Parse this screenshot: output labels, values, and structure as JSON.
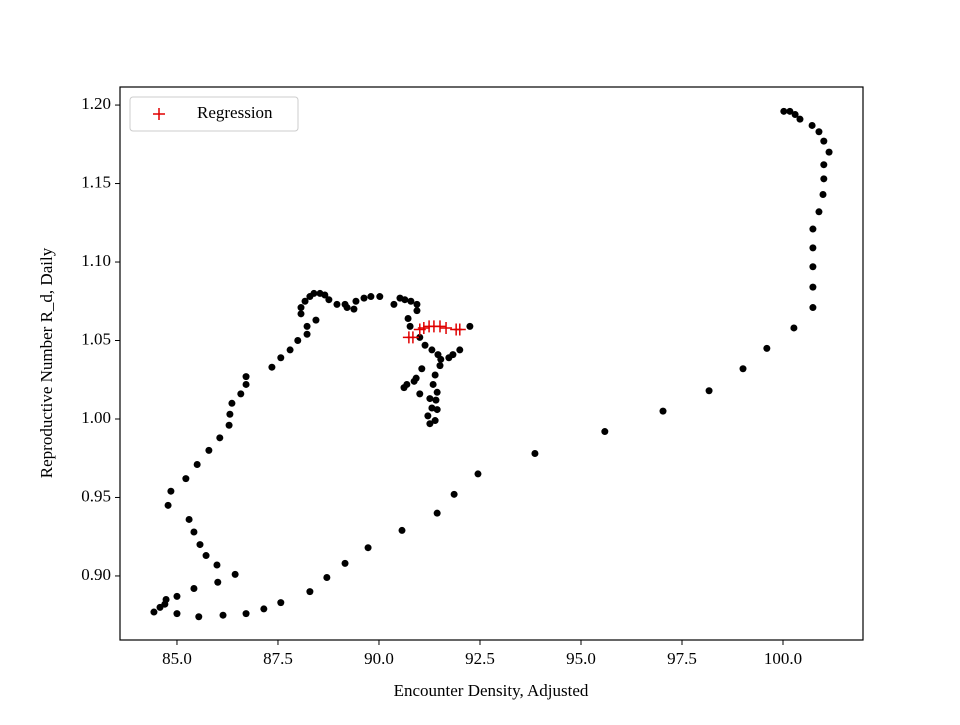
{
  "chart_data": {
    "type": "scatter",
    "xlabel": "Encounter Density, Adjusted",
    "ylabel": "Reproductive Number R_d, Daily",
    "xlim": [
      83.59,
      101.98
    ],
    "ylim": [
      0.8592,
      1.2115
    ],
    "xticks": [
      {
        "value": 85,
        "label": "85.0"
      },
      87.5,
      {
        "value": 90,
        "label": "90.0"
      },
      92.5,
      {
        "value": 95,
        "label": "95.0"
      },
      97.5,
      {
        "value": 100,
        "label": "100.0"
      }
    ],
    "yticks": [
      {
        "value": 0.9,
        "label": "0.90"
      },
      0.95,
      {
        "value": 1,
        "label": "1.00"
      },
      1.05,
      {
        "value": 1.1,
        "label": "1.10"
      },
      1.15,
      {
        "value": 1.2,
        "label": "1.20"
      }
    ],
    "legend": "upper left",
    "series": [
      {
        "color": "#000000",
        "marker": "dot",
        "x": [
          84.43,
          84.58,
          84.7,
          84.73,
          85.0,
          85.0,
          85.54,
          85.42,
          86.14,
          86.01,
          86.71,
          87.15,
          87.57,
          88.29,
          88.71,
          89.16,
          89.73,
          90.57,
          91.44,
          91.86,
          92.45,
          93.86,
          95.59,
          97.03,
          98.17,
          99.01,
          99.6,
          100.27,
          100.74,
          100.74,
          100.74,
          100.74,
          100.74,
          100.89,
          100.99,
          101.01,
          101.01,
          101.14,
          101.01,
          100.89,
          100.72,
          100.42,
          100.3,
          100.17,
          100.02,
          84.78,
          84.85,
          85.22,
          85.5,
          85.79,
          86.06,
          86.29,
          86.31,
          86.36,
          86.58,
          86.71,
          86.71,
          87.35,
          87.57,
          87.8,
          87.99,
          88.22,
          88.22,
          88.44,
          88.07,
          88.07,
          88.17,
          88.29,
          88.39,
          88.54,
          88.66,
          88.76,
          88.96,
          89.16,
          89.21,
          89.38,
          89.43,
          89.63,
          89.8,
          90.02,
          90.37,
          90.52,
          90.64,
          90.79,
          90.94,
          90.94,
          90.72,
          90.77,
          91.01,
          91.14,
          91.31,
          91.46,
          91.53,
          91.51,
          91.39,
          91.34,
          91.44,
          91.41,
          91.44,
          91.39,
          91.26,
          91.21,
          91.31,
          91.26,
          91.01,
          90.92,
          90.87,
          90.69,
          90.62,
          91.06,
          91.73,
          91.83,
          92.0,
          92.25,
          85.3,
          85.42,
          85.57,
          85.72,
          85.99,
          86.44
        ],
        "y": [
          0.877,
          0.88,
          0.882,
          0.885,
          0.887,
          0.876,
          0.874,
          0.892,
          0.875,
          0.896,
          0.876,
          0.879,
          0.883,
          0.89,
          0.899,
          0.908,
          0.918,
          0.929,
          0.94,
          0.952,
          0.965,
          0.978,
          0.992,
          1.005,
          1.018,
          1.032,
          1.045,
          1.058,
          1.071,
          1.084,
          1.097,
          1.109,
          1.121,
          1.132,
          1.143,
          1.153,
          1.162,
          1.17,
          1.177,
          1.183,
          1.187,
          1.191,
          1.194,
          1.196,
          1.196,
          0.945,
          0.954,
          0.962,
          0.971,
          0.98,
          0.988,
          0.996,
          1.003,
          1.01,
          1.016,
          1.022,
          1.027,
          1.033,
          1.039,
          1.044,
          1.05,
          1.054,
          1.059,
          1.063,
          1.067,
          1.071,
          1.075,
          1.078,
          1.08,
          1.08,
          1.079,
          1.076,
          1.073,
          1.073,
          1.071,
          1.07,
          1.075,
          1.077,
          1.078,
          1.078,
          1.073,
          1.077,
          1.076,
          1.075,
          1.073,
          1.069,
          1.064,
          1.059,
          1.052,
          1.047,
          1.044,
          1.041,
          1.038,
          1.034,
          1.028,
          1.022,
          1.017,
          1.012,
          1.006,
          0.999,
          0.997,
          1.002,
          1.007,
          1.013,
          1.016,
          1.026,
          1.024,
          1.022,
          1.02,
          1.032,
          1.039,
          1.041,
          1.044,
          1.059,
          0.936,
          0.928,
          0.92,
          0.913,
          0.907,
          0.901
        ]
      },
      {
        "name": "Regression",
        "color": "#e00000",
        "marker": "plus",
        "x": [
          90.74,
          90.84,
          91.01,
          91.11,
          91.24,
          91.36,
          91.51,
          91.66,
          91.91,
          92.0
        ],
        "y": [
          1.052,
          1.052,
          1.057,
          1.058,
          1.059,
          1.059,
          1.059,
          1.058,
          1.057,
          1.057
        ]
      }
    ]
  }
}
